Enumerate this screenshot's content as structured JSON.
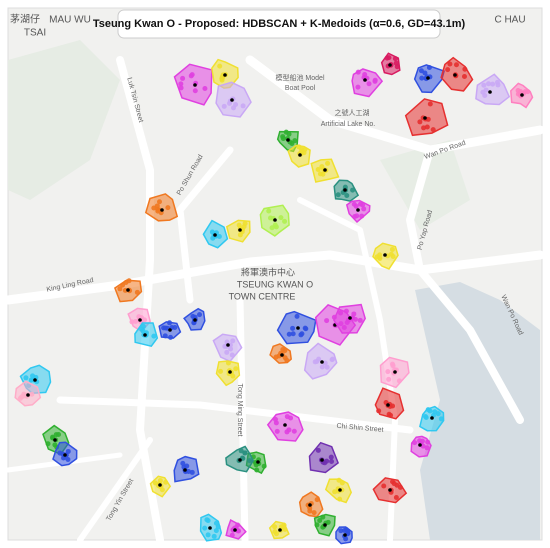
{
  "map": {
    "title": "Tseung Kwan O - Proposed: HDBSCAN + K-Medoids (α=0.6, GD=43.1m)",
    "place_labels": [
      "茅湖仔",
      "MAU WU",
      "TSAI",
      "C HAU",
      "模型船池 Model",
      "Boat Pool",
      "之號人工湖",
      "Artificial Lake No.",
      "將軍澳市中心",
      "TSEUNG KWAN O",
      "TOWN CENTRE"
    ],
    "street_labels": [
      "Wan Po Road",
      "Po Shun Road",
      "Po Yap Road",
      "King Ling Road",
      "Wan Po Road",
      "Chi Shin Street",
      "Tong Ming Street",
      "Tong Yin Street",
      "Luk Tsin Street"
    ]
  }
}
